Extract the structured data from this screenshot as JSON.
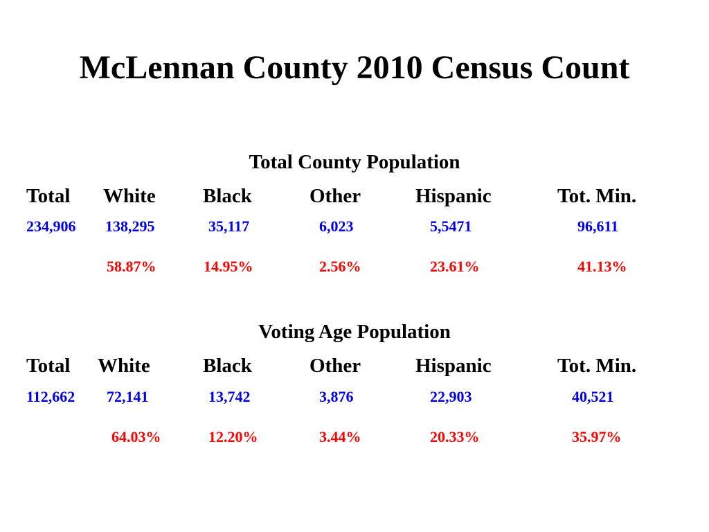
{
  "title": "McLennan County 2010 Census Count",
  "colors": {
    "headers": "#000000",
    "counts": "#0000e6",
    "percentages": "#ff0000"
  },
  "total_population": {
    "heading": "Total County Population",
    "columns": [
      "Total",
      "White",
      "Black",
      "Other",
      "Hispanic",
      "Tot. Min."
    ],
    "counts": [
      "234,906",
      "138,295",
      "35,117",
      "6,023",
      "5,5471",
      "96,611"
    ],
    "percentages": [
      "58.87%",
      "14.95%",
      "2.56%",
      "23.61%",
      "41.13%"
    ]
  },
  "voting_age_population": {
    "heading": "Voting Age Population",
    "columns": [
      "Total",
      "White",
      "Black",
      "Other",
      "Hispanic",
      "Tot. Min."
    ],
    "counts": [
      "112,662",
      "72,141",
      "13,742",
      "3,876",
      "22,903",
      "40,521"
    ],
    "percentages": [
      "64.03%",
      "12.20%",
      "3.44%",
      "20.33%",
      "35.97%"
    ]
  }
}
